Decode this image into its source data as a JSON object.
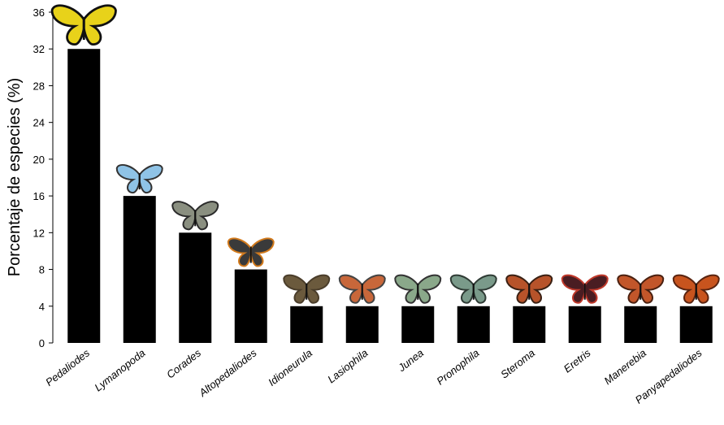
{
  "chart_data": {
    "type": "bar",
    "y_label": "Porcentaje de especies (%)",
    "categories": [
      "Pedaliodes",
      "Lymanopoda",
      "Corades",
      "Altopedaliodes",
      "Idioneurula",
      "Lasiophila",
      "Junea",
      "Pronophila",
      "Steroma",
      "Eretris",
      "Manerebia",
      "Panyapedaliodes"
    ],
    "values": [
      32,
      16,
      12,
      8,
      4,
      4,
      4,
      4,
      4,
      4,
      4,
      4
    ],
    "color": "#000000",
    "ylim": [
      0,
      36
    ],
    "yticks": [
      0,
      4,
      8,
      12,
      16,
      20,
      24,
      28,
      32,
      36
    ],
    "grid": false
  }
}
